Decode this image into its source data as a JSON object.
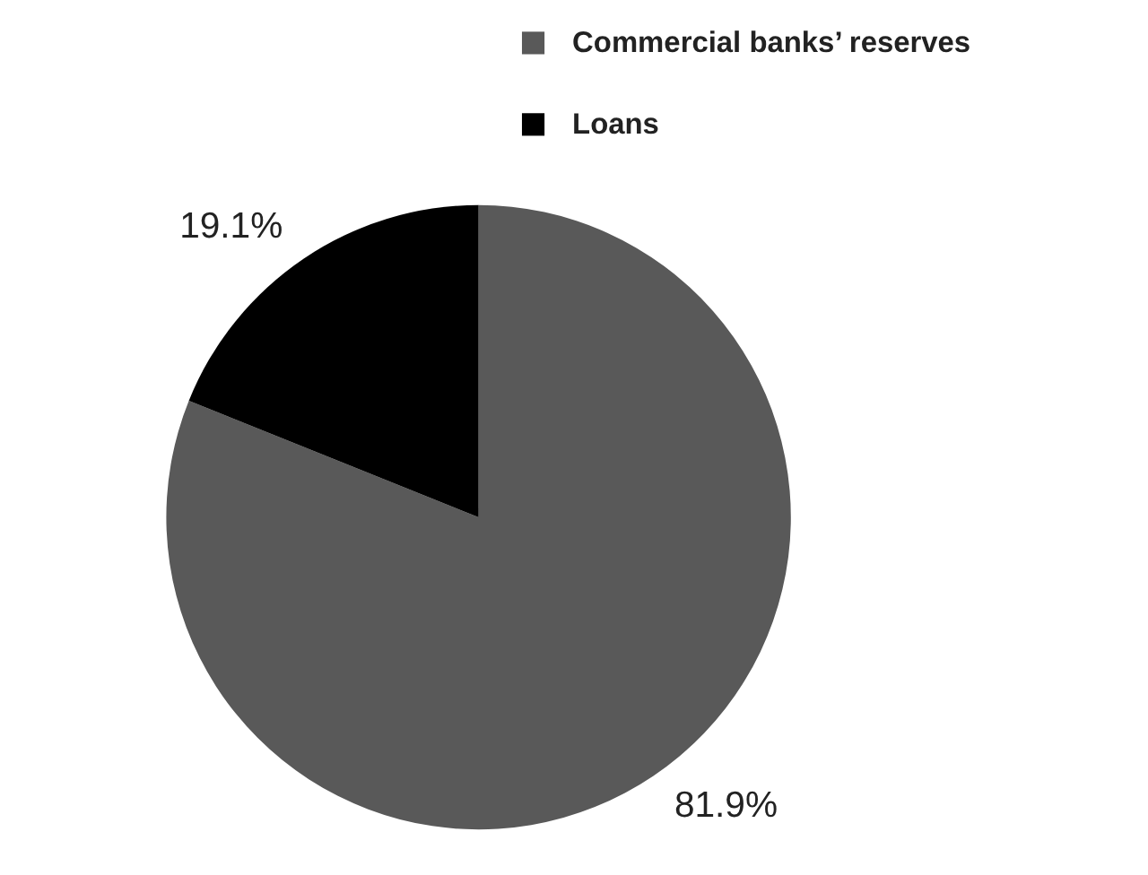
{
  "chart_data": {
    "type": "pie",
    "categories": [
      "Commercial banks’ reserves",
      "Loans"
    ],
    "values": [
      81.9,
      19.1
    ],
    "colors": [
      "#595959",
      "#000000"
    ],
    "value_labels": [
      "81.9%",
      "19.1%"
    ],
    "legend": "top right"
  }
}
